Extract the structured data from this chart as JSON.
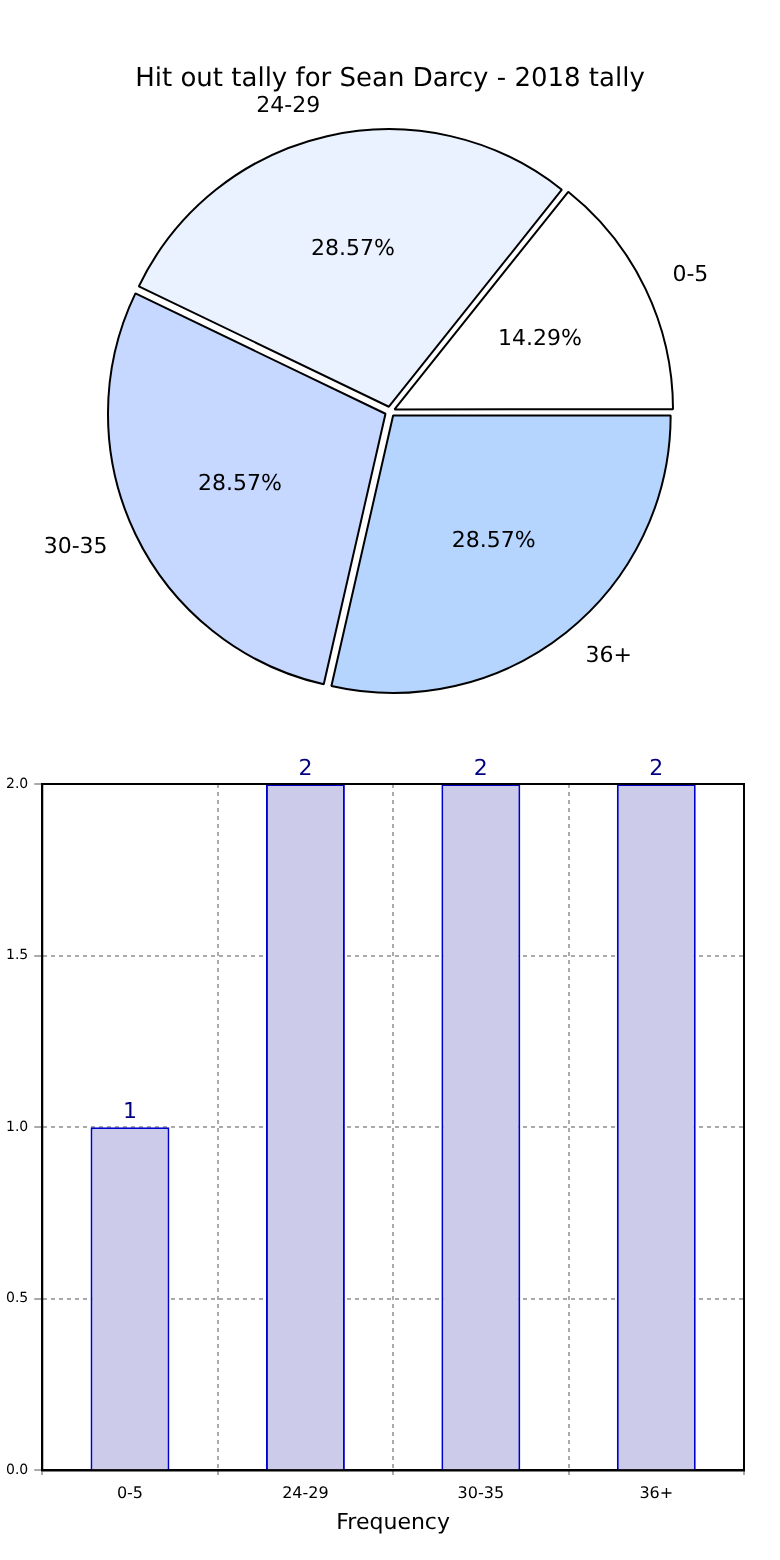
{
  "chart_data": [
    {
      "type": "pie",
      "title": "Hit out tally for Sean Darcy - 2018 tally",
      "categories": [
        "0-5",
        "24-29",
        "30-35",
        "36+"
      ],
      "values": [
        14.29,
        28.57,
        28.57,
        28.57
      ],
      "colors": [
        "#ffffff",
        "#eaf2ff",
        "#c6d8ff",
        "#b5d5ff"
      ],
      "value_labels": [
        "14.29%",
        "28.57%",
        "28.57%",
        "28.57%"
      ],
      "legend": false
    },
    {
      "type": "bar",
      "xlabel": "Frequency",
      "categories": [
        "0-5",
        "24-29",
        "30-35",
        "36+"
      ],
      "values": [
        1,
        2,
        2,
        2
      ],
      "color": "#ccccea",
      "ylim": [
        0,
        2
      ],
      "yticks": [
        {
          "value": 0,
          "label": "0.0"
        },
        {
          "value": 0.5,
          "label": "0.5"
        },
        {
          "value": 1,
          "label": "1.0"
        },
        {
          "value": 1.5,
          "label": "1.5"
        },
        {
          "value": 2,
          "label": "2.0"
        }
      ],
      "grid": true,
      "data_labels": true,
      "legend": false
    }
  ]
}
